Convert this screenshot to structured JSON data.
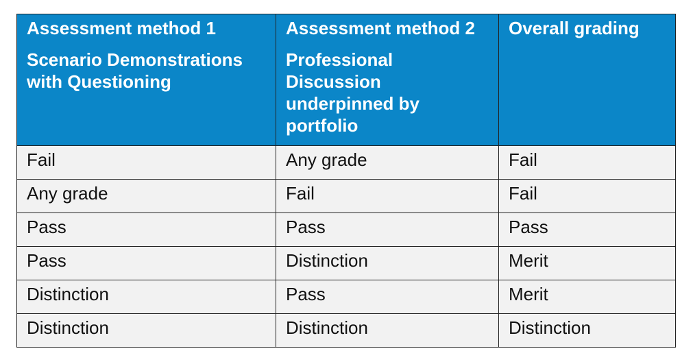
{
  "header": {
    "col1": {
      "method": "Assessment method 1",
      "description": "Scenario Demonstrations with Questioning"
    },
    "col2": {
      "method": "Assessment method 2",
      "description": "Professional Discussion underpinned by portfolio"
    },
    "col3": {
      "method": "Overall grading",
      "description": ""
    }
  },
  "rows": [
    {
      "method1": "Fail",
      "method2": "Any grade",
      "overall": "Fail"
    },
    {
      "method1": "Any grade",
      "method2": "Fail",
      "overall": "Fail"
    },
    {
      "method1": "Pass",
      "method2": "Pass",
      "overall": "Pass"
    },
    {
      "method1": "Pass",
      "method2": "Distinction",
      "overall": "Merit"
    },
    {
      "method1": "Distinction",
      "method2": "Pass",
      "overall": "Merit"
    },
    {
      "method1": "Distinction",
      "method2": "Distinction",
      "overall": "Distinction"
    }
  ],
  "colors": {
    "header_bg": "#0b86c8",
    "header_text": "#ffffff",
    "row_bg": "#f2f2f2",
    "border": "#222222"
  }
}
